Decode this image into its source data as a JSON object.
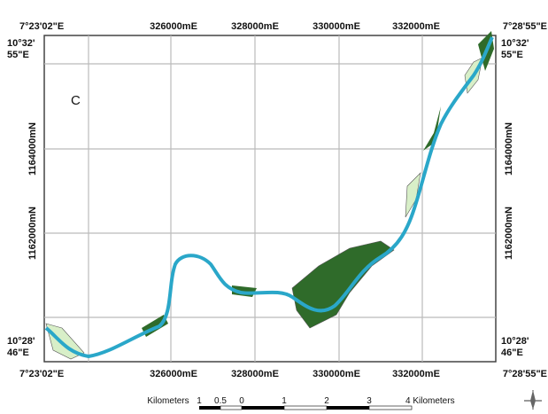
{
  "map": {
    "panel_label": "C",
    "corners": {
      "top_left_lon": "7°23'02\"E",
      "top_right_lon": "7°28'55\"E",
      "bottom_left_lon": "7°23'02\"E",
      "bottom_right_lon": "7°28'55\"E",
      "left_top_lat": [
        "10°32'",
        "55\"E"
      ],
      "right_top_lat": [
        "10°32'",
        "55\"E"
      ],
      "left_bottom_lat": [
        "10°28'",
        "46\"E"
      ],
      "right_bottom_lat": [
        "10°28'",
        "46\"E"
      ]
    },
    "top_eastings": [
      "326000mE",
      "328000mE",
      "330000mE",
      "332000mE"
    ],
    "bottom_eastings": [
      "326000mE",
      "328000mE",
      "330000mE",
      "332000mE"
    ],
    "left_northings": [
      "1164000mN",
      "1162000mN"
    ],
    "right_northings": [
      "1164000mN",
      "1162000mN"
    ],
    "scale_bar": [
      "Kilometers",
      "1",
      "0.5",
      "0",
      "1",
      "2",
      "3",
      "4 Kilometers"
    ]
  }
}
